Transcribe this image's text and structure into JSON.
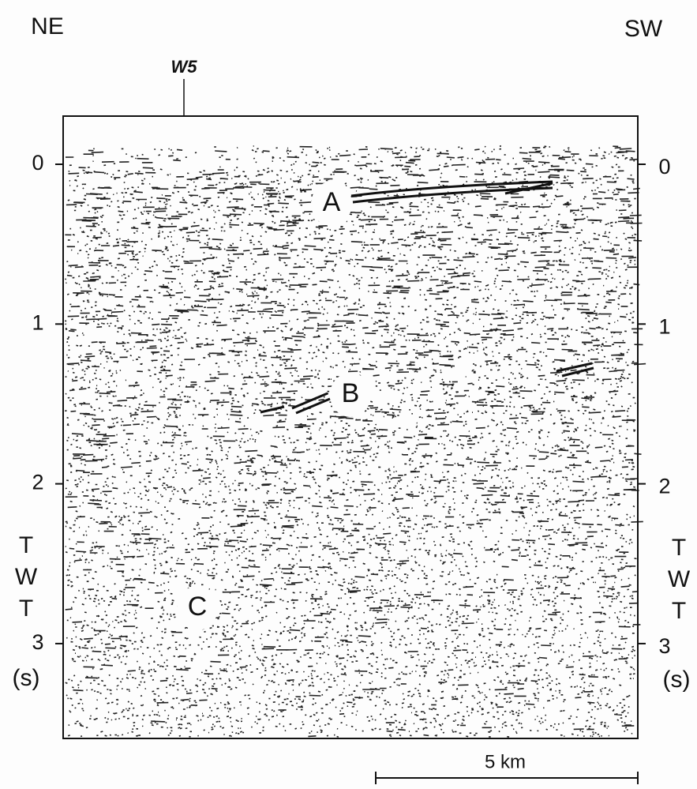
{
  "header": {
    "left": "NE",
    "right": "SW"
  },
  "well": "W5",
  "axis": {
    "ticks": [
      0,
      1,
      2,
      3
    ],
    "label_letters": [
      "T",
      "W",
      "T"
    ],
    "unit": "(s)"
  },
  "reflectors": [
    "A",
    "B",
    "C"
  ],
  "scale_bar": "5 km"
}
